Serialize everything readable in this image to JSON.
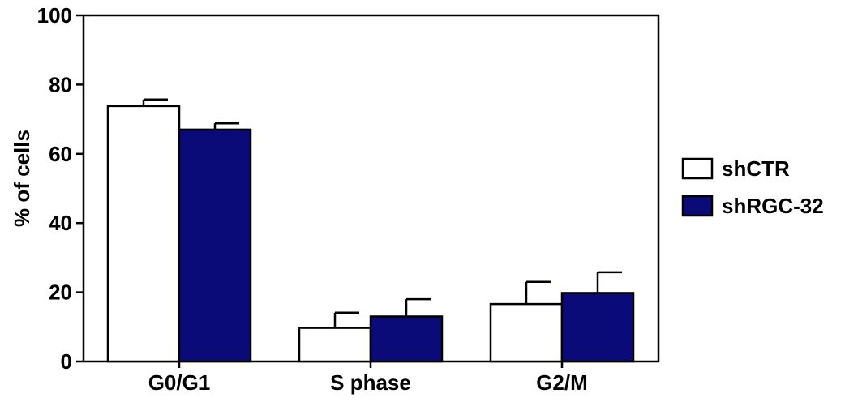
{
  "chart_data": {
    "type": "bar",
    "title": "",
    "xlabel": "",
    "ylabel": "% of cells",
    "ylim": [
      0,
      100
    ],
    "yticks": [
      0,
      20,
      40,
      60,
      80,
      100
    ],
    "categories": [
      "G0/G1",
      "S phase",
      "G2/M"
    ],
    "series": [
      {
        "name": "shCTR",
        "values": [
          73.8,
          9.7,
          16.6
        ],
        "errors": [
          1.9,
          4.4,
          6.4
        ],
        "color": "#ffffff"
      },
      {
        "name": "shRGC-32",
        "values": [
          67.0,
          13.0,
          19.8
        ],
        "errors": [
          1.8,
          5.0,
          6.0
        ],
        "color": "#0a0a78"
      }
    ],
    "legend_position": "right",
    "grid": false
  }
}
